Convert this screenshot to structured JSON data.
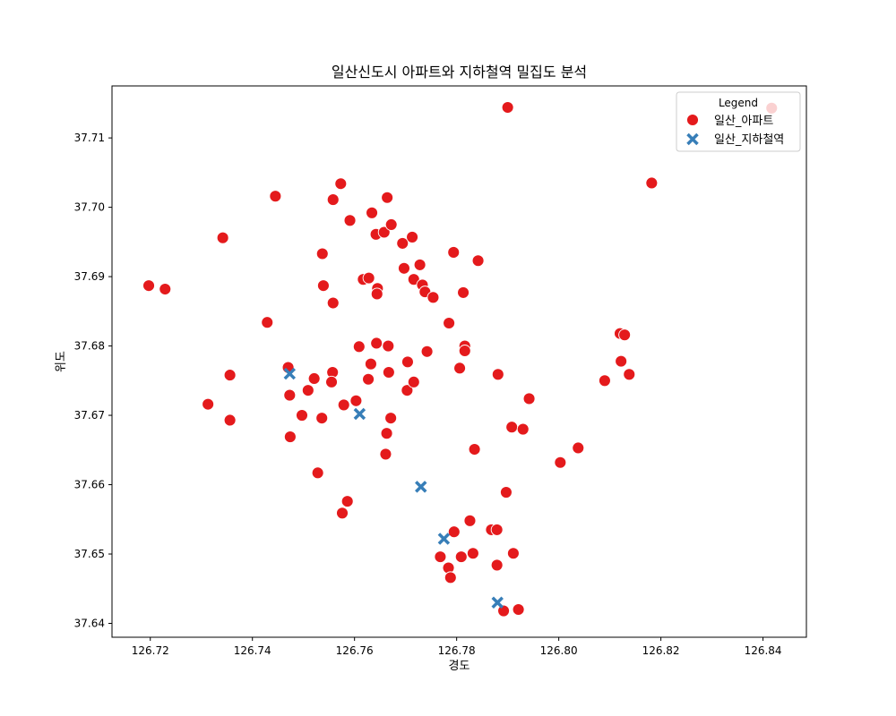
{
  "chart_data": {
    "type": "scatter",
    "title": "일산신도시 아파트와 지하철역 밀집도 분석",
    "xlabel": "경도",
    "ylabel": "위도",
    "xlim": [
      126.7125,
      126.8485
    ],
    "ylim": [
      37.638,
      37.7175
    ],
    "xticks": [
      "126.72",
      "126.74",
      "126.76",
      "126.78",
      "126.80",
      "126.82",
      "126.84"
    ],
    "yticks": [
      "37.64",
      "37.65",
      "37.66",
      "37.67",
      "37.68",
      "37.69",
      "37.70",
      "37.71"
    ],
    "grid": false,
    "legend": {
      "title": "Legend",
      "placement": "top-right"
    },
    "series": [
      {
        "name": "일산_아파트",
        "color": "#e41a1c",
        "marker": "circle",
        "points": [
          [
            126.7197,
            37.6887
          ],
          [
            126.7229,
            37.6882
          ],
          [
            126.7342,
            37.6956
          ],
          [
            126.7445,
            37.7016
          ],
          [
            126.7313,
            37.6716
          ],
          [
            126.7356,
            37.6758
          ],
          [
            126.7356,
            37.6693
          ],
          [
            126.7429,
            37.6834
          ],
          [
            126.747,
            37.6769
          ],
          [
            126.7473,
            37.6729
          ],
          [
            126.7474,
            37.6669
          ],
          [
            126.7497,
            37.67
          ],
          [
            126.7509,
            37.6736
          ],
          [
            126.7521,
            37.6753
          ],
          [
            126.7528,
            37.6617
          ],
          [
            126.7537,
            37.6933
          ],
          [
            126.7539,
            37.6887
          ],
          [
            126.7536,
            37.6696
          ],
          [
            126.7558,
            37.7011
          ],
          [
            126.7558,
            37.6862
          ],
          [
            126.7557,
            37.6762
          ],
          [
            126.7555,
            37.6748
          ],
          [
            126.7573,
            37.7034
          ],
          [
            126.7576,
            37.6559
          ],
          [
            126.7579,
            37.6715
          ],
          [
            126.7586,
            37.6576
          ],
          [
            126.7591,
            37.6981
          ],
          [
            126.7603,
            37.6721
          ],
          [
            126.7609,
            37.6799
          ],
          [
            126.7617,
            37.6896
          ],
          [
            126.7628,
            37.6898
          ],
          [
            126.7627,
            37.6752
          ],
          [
            126.7634,
            37.6992
          ],
          [
            126.7632,
            37.6774
          ],
          [
            126.7642,
            37.6961
          ],
          [
            126.7643,
            37.6804
          ],
          [
            126.7645,
            37.6883
          ],
          [
            126.7644,
            37.6875
          ],
          [
            126.7658,
            37.6964
          ],
          [
            126.7664,
            37.7014
          ],
          [
            126.7666,
            37.68
          ],
          [
            126.7667,
            37.6762
          ],
          [
            126.7663,
            37.6674
          ],
          [
            126.7661,
            37.6644
          ],
          [
            126.7672,
            37.6975
          ],
          [
            126.7671,
            37.6696
          ],
          [
            126.7694,
            37.6948
          ],
          [
            126.7697,
            37.6912
          ],
          [
            126.7704,
            37.6777
          ],
          [
            126.7703,
            37.6736
          ],
          [
            126.7713,
            37.6957
          ],
          [
            126.7716,
            37.6896
          ],
          [
            126.7716,
            37.6748
          ],
          [
            126.7728,
            37.6917
          ],
          [
            126.7733,
            37.6888
          ],
          [
            126.7738,
            37.6878
          ],
          [
            126.7742,
            37.6792
          ],
          [
            126.7754,
            37.687
          ],
          [
            126.7785,
            37.6833
          ],
          [
            126.7794,
            37.6935
          ],
          [
            126.7795,
            37.6532
          ],
          [
            126.7768,
            37.6496
          ],
          [
            126.7784,
            37.648
          ],
          [
            126.7788,
            37.6466
          ],
          [
            126.7806,
            37.6768
          ],
          [
            126.7813,
            37.6877
          ],
          [
            126.7816,
            37.68
          ],
          [
            126.7816,
            37.6793
          ],
          [
            126.7809,
            37.6496
          ],
          [
            126.7826,
            37.6548
          ],
          [
            126.7832,
            37.6501
          ],
          [
            126.7835,
            37.6651
          ],
          [
            126.7842,
            37.6923
          ],
          [
            126.7868,
            37.6535
          ],
          [
            126.7879,
            37.6535
          ],
          [
            126.7881,
            37.6759
          ],
          [
            126.7879,
            37.6484
          ],
          [
            126.7892,
            37.6418
          ],
          [
            126.7897,
            37.6589
          ],
          [
            126.79,
            37.7144
          ],
          [
            126.7908,
            37.6683
          ],
          [
            126.7911,
            37.6501
          ],
          [
            126.7921,
            37.642
          ],
          [
            126.793,
            37.668
          ],
          [
            126.7942,
            37.6724
          ],
          [
            126.8003,
            37.6632
          ],
          [
            126.8038,
            37.6653
          ],
          [
            126.809,
            37.675
          ],
          [
            126.812,
            37.6818
          ],
          [
            126.8129,
            37.6816
          ],
          [
            126.8122,
            37.6778
          ],
          [
            126.8138,
            37.6759
          ],
          [
            126.8182,
            37.7035
          ],
          [
            126.8417,
            37.7143
          ]
        ]
      },
      {
        "name": "일산_지하철역",
        "color": "#377eb8",
        "marker": "x",
        "points": [
          [
            126.7473,
            37.676
          ],
          [
            126.761,
            37.6702
          ],
          [
            126.773,
            37.6597
          ],
          [
            126.7775,
            37.6522
          ],
          [
            126.788,
            37.643
          ]
        ]
      }
    ]
  }
}
